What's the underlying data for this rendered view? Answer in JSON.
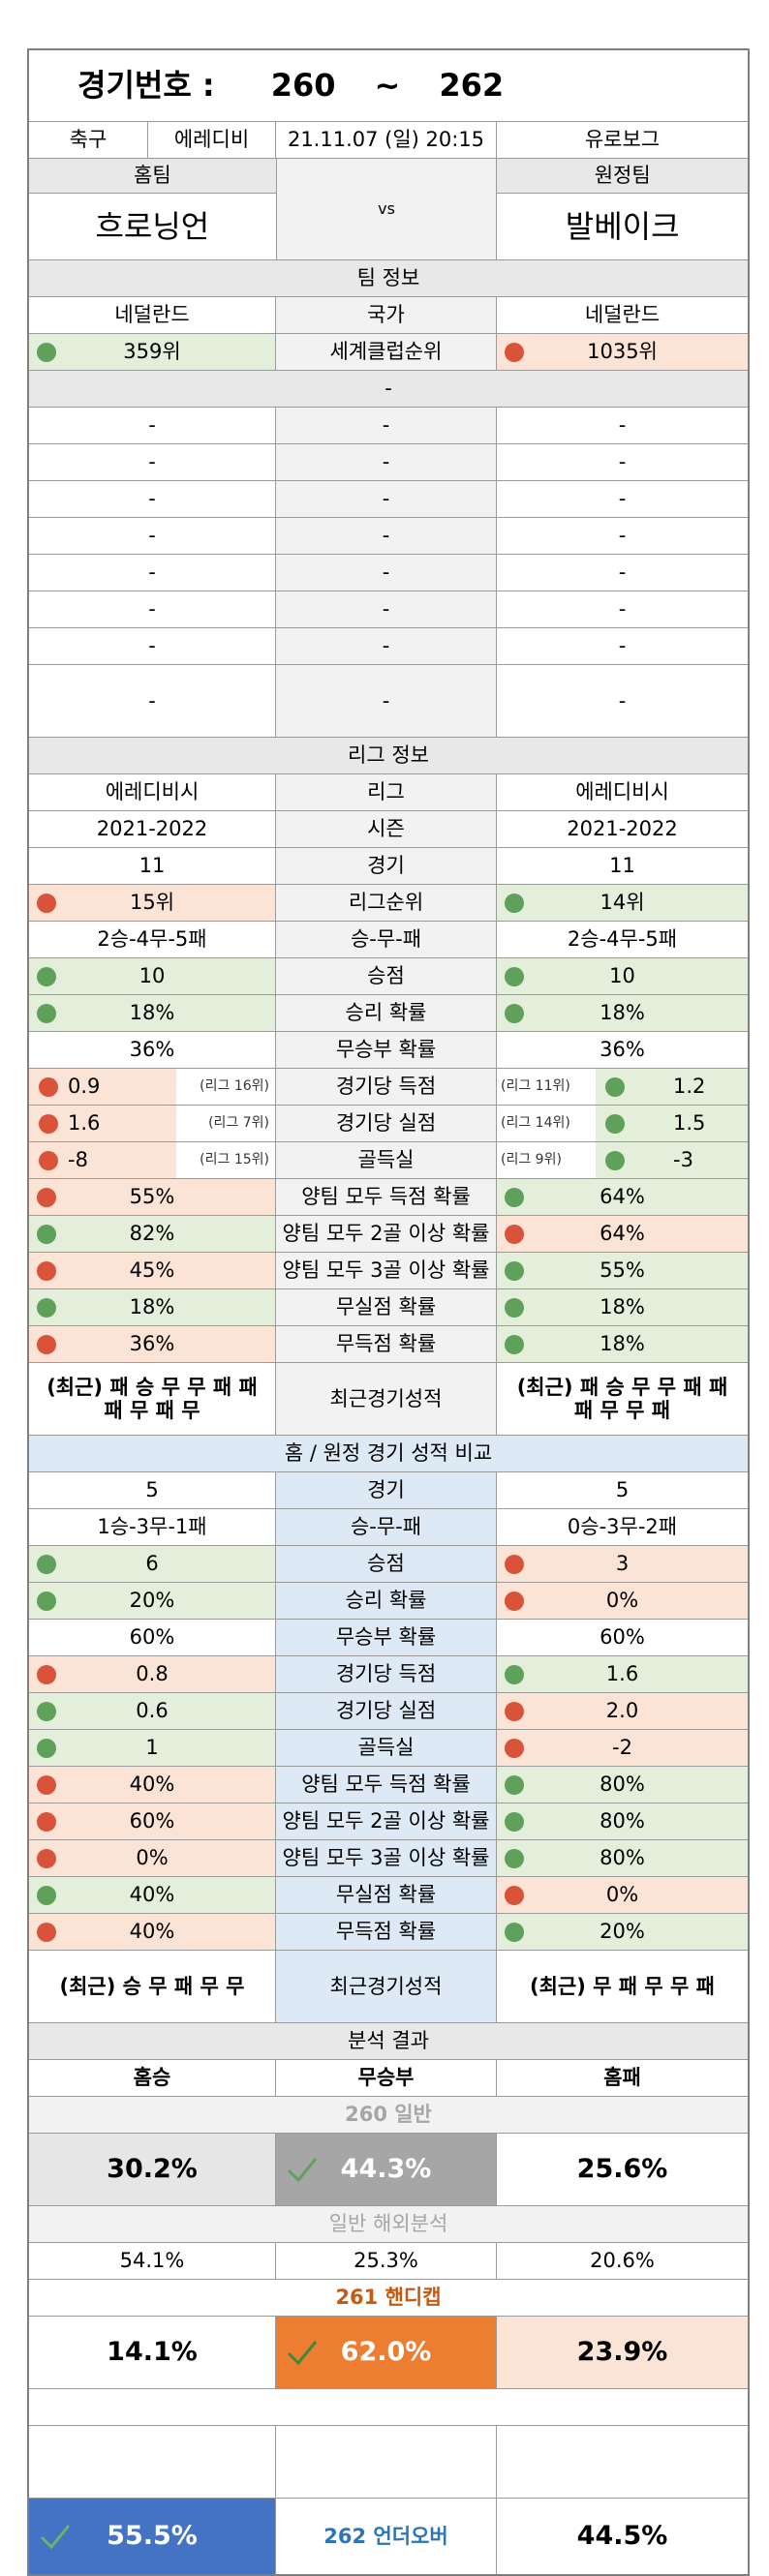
{
  "header": {
    "label": "경기번호 :",
    "from": "260",
    "tilde": "~",
    "to": "262"
  },
  "info": {
    "sport": "축구",
    "league": "에레디비",
    "datetime": "21.11.07 (일) 20:15",
    "tv": "유로보그"
  },
  "teams": {
    "home_label": "홈팀",
    "away_label": "원정팀",
    "home": "흐로닝언",
    "vs": "vs",
    "away": "발베이크"
  },
  "team_info": {
    "title": "팀 정보",
    "country": {
      "home": "네덜란드",
      "label": "국가",
      "away": "네덜란드"
    },
    "club_rank": {
      "home": "359위",
      "label": "세계클럽순위",
      "away": "1035위"
    },
    "sub_title": "-",
    "blank_rows": [
      [
        "-",
        "-",
        "-"
      ],
      [
        "-",
        "-",
        "-"
      ],
      [
        "-",
        "-",
        "-"
      ],
      [
        "-",
        "-",
        "-"
      ],
      [
        "-",
        "-",
        "-"
      ],
      [
        "-",
        "-",
        "-"
      ],
      [
        "-",
        "-",
        "-"
      ]
    ],
    "tall_row": [
      "-",
      "-",
      "-"
    ]
  },
  "league_info": {
    "title": "리그 정보",
    "rows": [
      {
        "label": "리그",
        "home": "에레디비시",
        "away": "에레디비시"
      },
      {
        "label": "시즌",
        "home": "2021-2022",
        "away": "2021-2022"
      },
      {
        "label": "경기",
        "home": "11",
        "away": "11"
      },
      {
        "label": "리그순위",
        "home": "15위",
        "away": "14위",
        "hc": "o",
        "hd": "r",
        "ac": "g",
        "ad": "g"
      },
      {
        "label": "승-무-패",
        "home": "2승-4무-5패",
        "away": "2승-4무-5패"
      },
      {
        "label": "승점",
        "home": "10",
        "away": "10",
        "hc": "g",
        "hd": "g",
        "ac": "g",
        "ad": "g"
      },
      {
        "label": "승리 확률",
        "home": "18%",
        "away": "18%",
        "hc": "g",
        "hd": "g",
        "ac": "g",
        "ad": "g"
      },
      {
        "label": "무승부 확률",
        "home": "36%",
        "away": "36%"
      }
    ],
    "rank_rows": [
      {
        "label": "경기당 득점",
        "home": "0.9",
        "home_rank": "(리그 16위)",
        "away": "1.2",
        "away_rank": "(리그 11위)",
        "hc": "o",
        "hd": "r",
        "ac": "g",
        "ad": "g"
      },
      {
        "label": "경기당 실점",
        "home": "1.6",
        "home_rank": "(리그 7위)",
        "away": "1.5",
        "away_rank": "(리그 14위)",
        "hc": "o",
        "hd": "r",
        "ac": "g",
        "ad": "g"
      },
      {
        "label": "골득실",
        "home": "-8",
        "home_rank": "(리그 15위)",
        "away": "-3",
        "away_rank": "(리그 9위)",
        "hc": "o",
        "hd": "r",
        "ac": "g",
        "ad": "g"
      }
    ],
    "prob_rows": [
      {
        "label": "양팀 모두 득점 확률",
        "home": "55%",
        "away": "64%",
        "hc": "o",
        "hd": "r",
        "ac": "g",
        "ad": "g"
      },
      {
        "label": "양팀 모두 2골 이상 확률",
        "home": "82%",
        "away": "64%",
        "hc": "g",
        "hd": "g",
        "ac": "o",
        "ad": "r"
      },
      {
        "label": "양팀 모두 3골 이상 확률",
        "home": "45%",
        "away": "55%",
        "hc": "o",
        "hd": "r",
        "ac": "g",
        "ad": "g"
      },
      {
        "label": "무실점 확률",
        "home": "18%",
        "away": "18%",
        "hc": "g",
        "hd": "g",
        "ac": "g",
        "ad": "g"
      },
      {
        "label": "무득점 확률",
        "home": "36%",
        "away": "18%",
        "hc": "o",
        "hd": "r",
        "ac": "g",
        "ad": "g"
      }
    ],
    "recent": {
      "label": "최근경기성적",
      "home": "(최근) 패 승 무 무 패 패 패 무 패 무",
      "away": "(최근) 패 승 무 무 패 패 패 무 무 패"
    }
  },
  "compare": {
    "title": "홈 / 원정 경기 성적 비교",
    "rows": [
      {
        "label": "경기",
        "home": "5",
        "away": "5"
      },
      {
        "label": "승-무-패",
        "home": "1승-3무-1패",
        "away": "0승-3무-2패"
      },
      {
        "label": "승점",
        "home": "6",
        "away": "3",
        "hc": "g",
        "hd": "g",
        "ac": "o",
        "ad": "r"
      },
      {
        "label": "승리 확률",
        "home": "20%",
        "away": "0%",
        "hc": "g",
        "hd": "g",
        "ac": "o",
        "ad": "r"
      },
      {
        "label": "무승부 확률",
        "home": "60%",
        "away": "60%"
      },
      {
        "label": "경기당 득점",
        "home": "0.8",
        "away": "1.6",
        "hc": "o",
        "hd": "r",
        "ac": "g",
        "ad": "g"
      },
      {
        "label": "경기당 실점",
        "home": "0.6",
        "away": "2.0",
        "hc": "g",
        "hd": "g",
        "ac": "o",
        "ad": "r"
      },
      {
        "label": "골득실",
        "home": "1",
        "away": "-2",
        "hc": "g",
        "hd": "g",
        "ac": "o",
        "ad": "r"
      },
      {
        "label": "양팀 모두 득점 확률",
        "home": "40%",
        "away": "80%",
        "hc": "o",
        "hd": "r",
        "ac": "g",
        "ad": "g"
      },
      {
        "label": "양팀 모두 2골 이상 확률",
        "home": "60%",
        "away": "80%",
        "hc": "o",
        "hd": "r",
        "ac": "g",
        "ad": "g"
      },
      {
        "label": "양팀 모두 3골 이상 확률",
        "home": "0%",
        "away": "80%",
        "hc": "o",
        "hd": "r",
        "ac": "g",
        "ad": "g"
      },
      {
        "label": "무실점 확률",
        "home": "40%",
        "away": "0%",
        "hc": "g",
        "hd": "g",
        "ac": "o",
        "ad": "r"
      },
      {
        "label": "무득점 확률",
        "home": "40%",
        "away": "20%",
        "hc": "o",
        "hd": "r",
        "ac": "g",
        "ad": "g"
      }
    ],
    "recent": {
      "label": "최근경기성적",
      "home": "(최근) 승 무 패 무 무",
      "away": "(최근) 무 패 무 무 패"
    }
  },
  "analysis": {
    "title": "분석 결과",
    "head": {
      "home": "홈승",
      "draw": "무승부",
      "away": "홈패"
    },
    "game260": {
      "label": "260 일반",
      "home": "30.2%",
      "draw": "44.3%",
      "away": "25.6%"
    },
    "overseas": {
      "label": "일반 해외분석",
      "home": "54.1%",
      "draw": "25.3%",
      "away": "20.6%"
    },
    "game261": {
      "label": "261 핸디캡",
      "home": "14.1%",
      "draw": "62.0%",
      "away": "23.9%"
    },
    "game262": {
      "over": "55.5%",
      "label": "262 언더오버",
      "under": "44.5%"
    },
    "colors": {
      "gray": "#a6a6a6",
      "orange": "#ed7d31",
      "blue": "#4472c4",
      "peach": "#fbe3d6",
      "label_blue": "#2e75b6",
      "label_orange": "#c55a11"
    }
  }
}
